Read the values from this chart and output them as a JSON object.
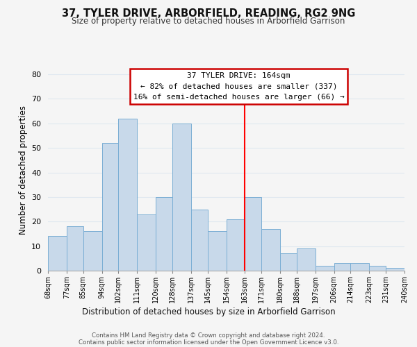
{
  "title": "37, TYLER DRIVE, ARBORFIELD, READING, RG2 9NG",
  "subtitle": "Size of property relative to detached houses in Arborfield Garrison",
  "xlabel": "Distribution of detached houses by size in Arborfield Garrison",
  "ylabel": "Number of detached properties",
  "bar_heights": [
    14,
    18,
    16,
    52,
    62,
    23,
    30,
    60,
    25,
    16,
    21,
    30,
    17,
    7,
    9,
    2,
    3,
    3,
    2,
    1
  ],
  "bin_edges": [
    68,
    77,
    85,
    94,
    102,
    111,
    120,
    128,
    137,
    145,
    154,
    163,
    171,
    180,
    188,
    197,
    206,
    214,
    223,
    231,
    240
  ],
  "x_tick_labels": [
    "68sqm",
    "77sqm",
    "85sqm",
    "94sqm",
    "102sqm",
    "111sqm",
    "120sqm",
    "128sqm",
    "137sqm",
    "145sqm",
    "154sqm",
    "163sqm",
    "171sqm",
    "180sqm",
    "188sqm",
    "197sqm",
    "206sqm",
    "214sqm",
    "223sqm",
    "231sqm",
    "240sqm"
  ],
  "bar_color": "#c8d9ea",
  "bar_edge_color": "#7aaed4",
  "red_line_x": 163,
  "ylim": [
    0,
    82
  ],
  "yticks": [
    0,
    10,
    20,
    30,
    40,
    50,
    60,
    70,
    80
  ],
  "annotation_title": "37 TYLER DRIVE: 164sqm",
  "annotation_line1": "← 82% of detached houses are smaller (337)",
  "annotation_line2": "16% of semi-detached houses are larger (66) →",
  "annotation_box_color": "#ffffff",
  "annotation_border_color": "#cc0000",
  "footer_line1": "Contains HM Land Registry data © Crown copyright and database right 2024.",
  "footer_line2": "Contains public sector information licensed under the Open Government Licence v3.0.",
  "grid_color": "#e0e8f0",
  "background_color": "#f5f5f5"
}
